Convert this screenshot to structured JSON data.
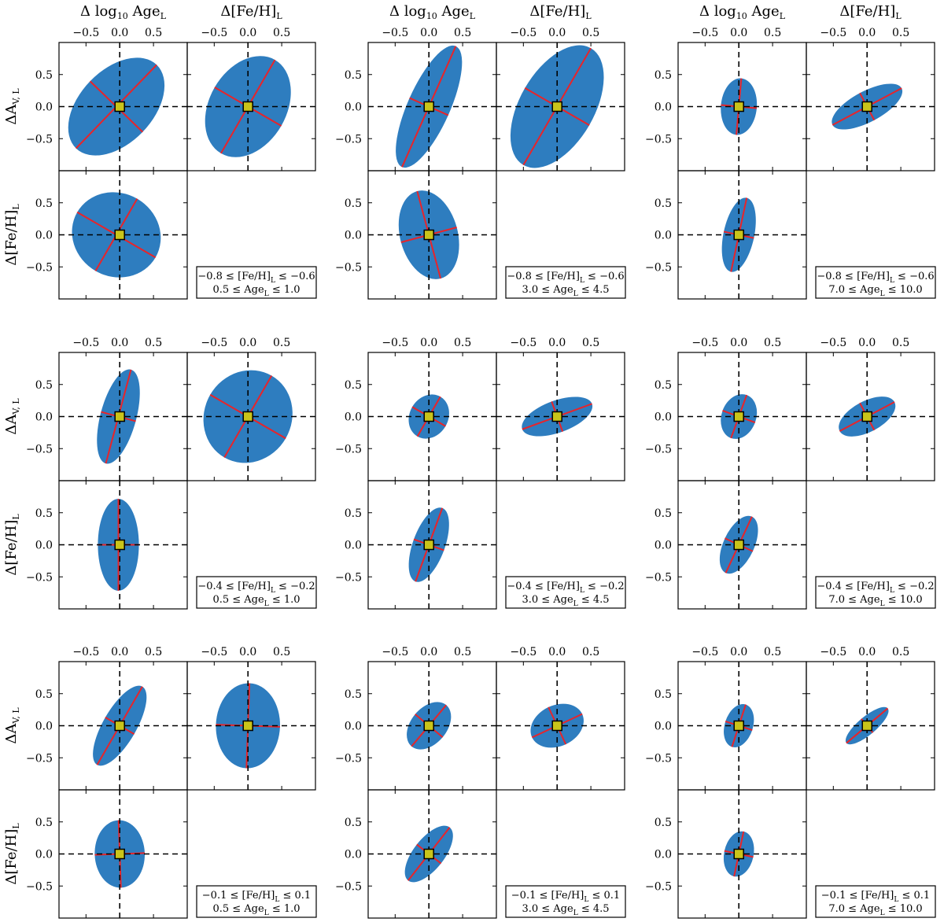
{
  "chart_data": {
    "type": "corner-ellipse-grid",
    "col_headers": [
      {
        "main": "Δ log",
        "sub1": "10",
        "main2": " Age",
        "sub2": "L"
      },
      {
        "main": "Δ[Fe/H]",
        "sub1": "L"
      }
    ],
    "row_labels": [
      {
        "main": "ΔA",
        "sub": "V, L"
      },
      {
        "main": "Δ[Fe/H]",
        "sub": "L"
      }
    ],
    "axis_ticks": [
      -0.5,
      0.0,
      0.5
    ],
    "tick_labels": [
      "−0.5",
      "0.0",
      "0.5"
    ],
    "ylim": [
      -1.0,
      1.0
    ],
    "xlim": [
      -0.9,
      1.0
    ],
    "fill_color": "#2e7dbf",
    "axis_line_color": "#e8242a",
    "marker_color": "#c9c41a",
    "panels": [
      {
        "feh_range": [
          "−0.8",
          "[Fe/H]",
          "−0.6"
        ],
        "age_range": [
          "0.5",
          "Age",
          "1.0"
        ],
        "ellipses": {
          "age_av": {
            "cx": -0.05,
            "cy": 0.0,
            "a": 0.86,
            "b": 0.57,
            "angle_deg": -46
          },
          "feh_av": {
            "cx": 0.0,
            "cy": 0.0,
            "a": 0.8,
            "b": 0.6,
            "angle_deg": -60
          },
          "age_feh": {
            "cx": -0.05,
            "cy": 0.0,
            "a": 0.67,
            "b": 0.65,
            "angle_deg": 30
          }
        }
      },
      {
        "feh_range": [
          "−0.8",
          "[Fe/H]",
          "−0.6"
        ],
        "age_range": [
          "3.0",
          "Age",
          "4.5"
        ],
        "ellipses": {
          "age_av": {
            "cx": 0.0,
            "cy": 0.0,
            "a": 0.98,
            "b": 0.33,
            "angle_deg": -66
          },
          "feh_av": {
            "cx": 0.0,
            "cy": 0.0,
            "a": 1.0,
            "b": 0.58,
            "angle_deg": -60
          },
          "age_feh": {
            "cx": 0.0,
            "cy": 0.0,
            "a": 0.67,
            "b": 0.45,
            "angle_deg": 75
          }
        }
      },
      {
        "feh_range": [
          "−0.8",
          "[Fe/H]",
          "−0.6"
        ],
        "age_range": [
          "7.0",
          "Age",
          "10.0"
        ],
        "ellipses": {
          "age_av": {
            "cx": 0.0,
            "cy": 0.0,
            "a": 0.42,
            "b": 0.28,
            "angle_deg": -85
          },
          "feh_av": {
            "cx": 0.0,
            "cy": 0.0,
            "a": 0.58,
            "b": 0.24,
            "angle_deg": -28
          },
          "age_feh": {
            "cx": 0.0,
            "cy": 0.0,
            "a": 0.56,
            "b": 0.24,
            "angle_deg": -78
          }
        }
      },
      {
        "feh_range": [
          "−0.4",
          "[Fe/H]",
          "−0.2"
        ],
        "age_range": [
          "0.5",
          "Age",
          "1.0"
        ],
        "ellipses": {
          "age_av": {
            "cx": -0.02,
            "cy": 0.0,
            "a": 0.72,
            "b": 0.28,
            "angle_deg": -75
          },
          "feh_av": {
            "cx": 0.0,
            "cy": 0.0,
            "a": 0.7,
            "b": 0.68,
            "angle_deg": -60
          },
          "age_feh": {
            "cx": -0.02,
            "cy": 0.0,
            "a": 0.68,
            "b": 0.32,
            "angle_deg": 90
          }
        }
      },
      {
        "feh_range": [
          "−0.4",
          "[Fe/H]",
          "−0.2"
        ],
        "age_range": [
          "3.0",
          "Age",
          "4.5"
        ],
        "ellipses": {
          "age_av": {
            "cx": 0.0,
            "cy": 0.0,
            "a": 0.34,
            "b": 0.3,
            "angle_deg": -60
          },
          "feh_av": {
            "cx": 0.0,
            "cy": 0.0,
            "a": 0.55,
            "b": 0.25,
            "angle_deg": -20
          },
          "age_feh": {
            "cx": 0.0,
            "cy": 0.0,
            "a": 0.58,
            "b": 0.25,
            "angle_deg": -70
          }
        }
      },
      {
        "feh_range": [
          "−0.4",
          "[Fe/H]",
          "−0.2"
        ],
        "age_range": [
          "7.0",
          "Age",
          "10.0"
        ],
        "ellipses": {
          "age_av": {
            "cx": 0.0,
            "cy": 0.0,
            "a": 0.34,
            "b": 0.27,
            "angle_deg": -70
          },
          "feh_av": {
            "cx": 0.0,
            "cy": 0.0,
            "a": 0.46,
            "b": 0.24,
            "angle_deg": -28
          },
          "age_feh": {
            "cx": 0.0,
            "cy": 0.0,
            "a": 0.46,
            "b": 0.24,
            "angle_deg": -65
          }
        }
      },
      {
        "feh_range": [
          "−0.1",
          "[Fe/H]",
          "0.1"
        ],
        "age_range": [
          "0.5",
          "Age",
          "1.0"
        ],
        "ellipses": {
          "age_av": {
            "cx": 0.0,
            "cy": 0.0,
            "a": 0.67,
            "b": 0.26,
            "angle_deg": -60
          },
          "feh_av": {
            "cx": 0.0,
            "cy": 0.0,
            "a": 0.63,
            "b": 0.5,
            "angle_deg": -88
          },
          "age_feh": {
            "cx": 0.0,
            "cy": 0.0,
            "a": 0.5,
            "b": 0.39,
            "angle_deg": 88
          }
        }
      },
      {
        "feh_range": [
          "−0.1",
          "[Fe/H]",
          "0.1"
        ],
        "age_range": [
          "3.0",
          "Age",
          "4.5"
        ],
        "ellipses": {
          "age_av": {
            "cx": 0.0,
            "cy": 0.0,
            "a": 0.4,
            "b": 0.28,
            "angle_deg": -50
          },
          "feh_av": {
            "cx": 0.0,
            "cy": 0.0,
            "a": 0.41,
            "b": 0.32,
            "angle_deg": -25
          },
          "age_feh": {
            "cx": 0.0,
            "cy": 0.0,
            "a": 0.5,
            "b": 0.24,
            "angle_deg": -52
          }
        }
      },
      {
        "feh_range": [
          "−0.1",
          "[Fe/H]",
          "0.1"
        ],
        "age_range": [
          "7.0",
          "Age",
          "10.0"
        ],
        "ellipses": {
          "age_av": {
            "cx": 0.0,
            "cy": 0.0,
            "a": 0.33,
            "b": 0.22,
            "angle_deg": -72
          },
          "feh_av": {
            "cx": 0.0,
            "cy": 0.0,
            "a": 0.4,
            "b": 0.14,
            "angle_deg": -40
          },
          "age_feh": {
            "cx": 0.0,
            "cy": 0.0,
            "a": 0.34,
            "b": 0.23,
            "angle_deg": -78
          }
        }
      }
    ]
  }
}
